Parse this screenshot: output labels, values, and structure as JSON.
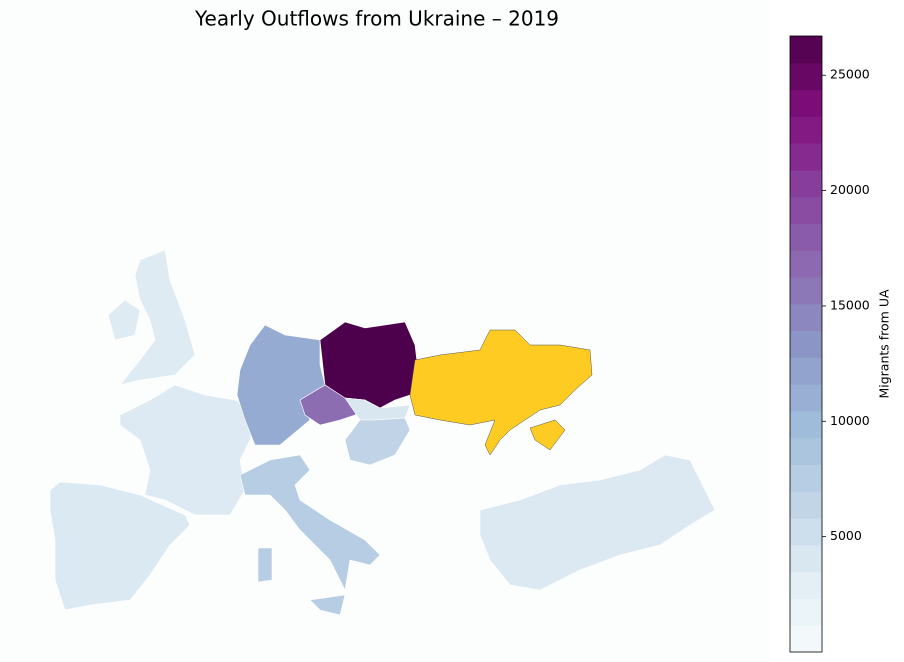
{
  "chart_data": {
    "type": "choropleth",
    "title": "Yearly Outflows from Ukraine – 2019",
    "colorbar_label": "Migrants from UA",
    "clim": [
      0,
      26700
    ],
    "cticks": [
      5000,
      10000,
      15000,
      20000,
      25000
    ],
    "colormap": [
      "#f7fcfd",
      "#e0ecf4",
      "#bfd3e6",
      "#9ebcda",
      "#8c96c6",
      "#8c6bb1",
      "#88419d",
      "#810f7c",
      "#4d004b"
    ],
    "highlight_color": "#fdcb22",
    "values": [
      3800,
      3600,
      3500,
      11500,
      26700,
      16500,
      4000,
      6500,
      7500,
      3700
    ]
  }
}
